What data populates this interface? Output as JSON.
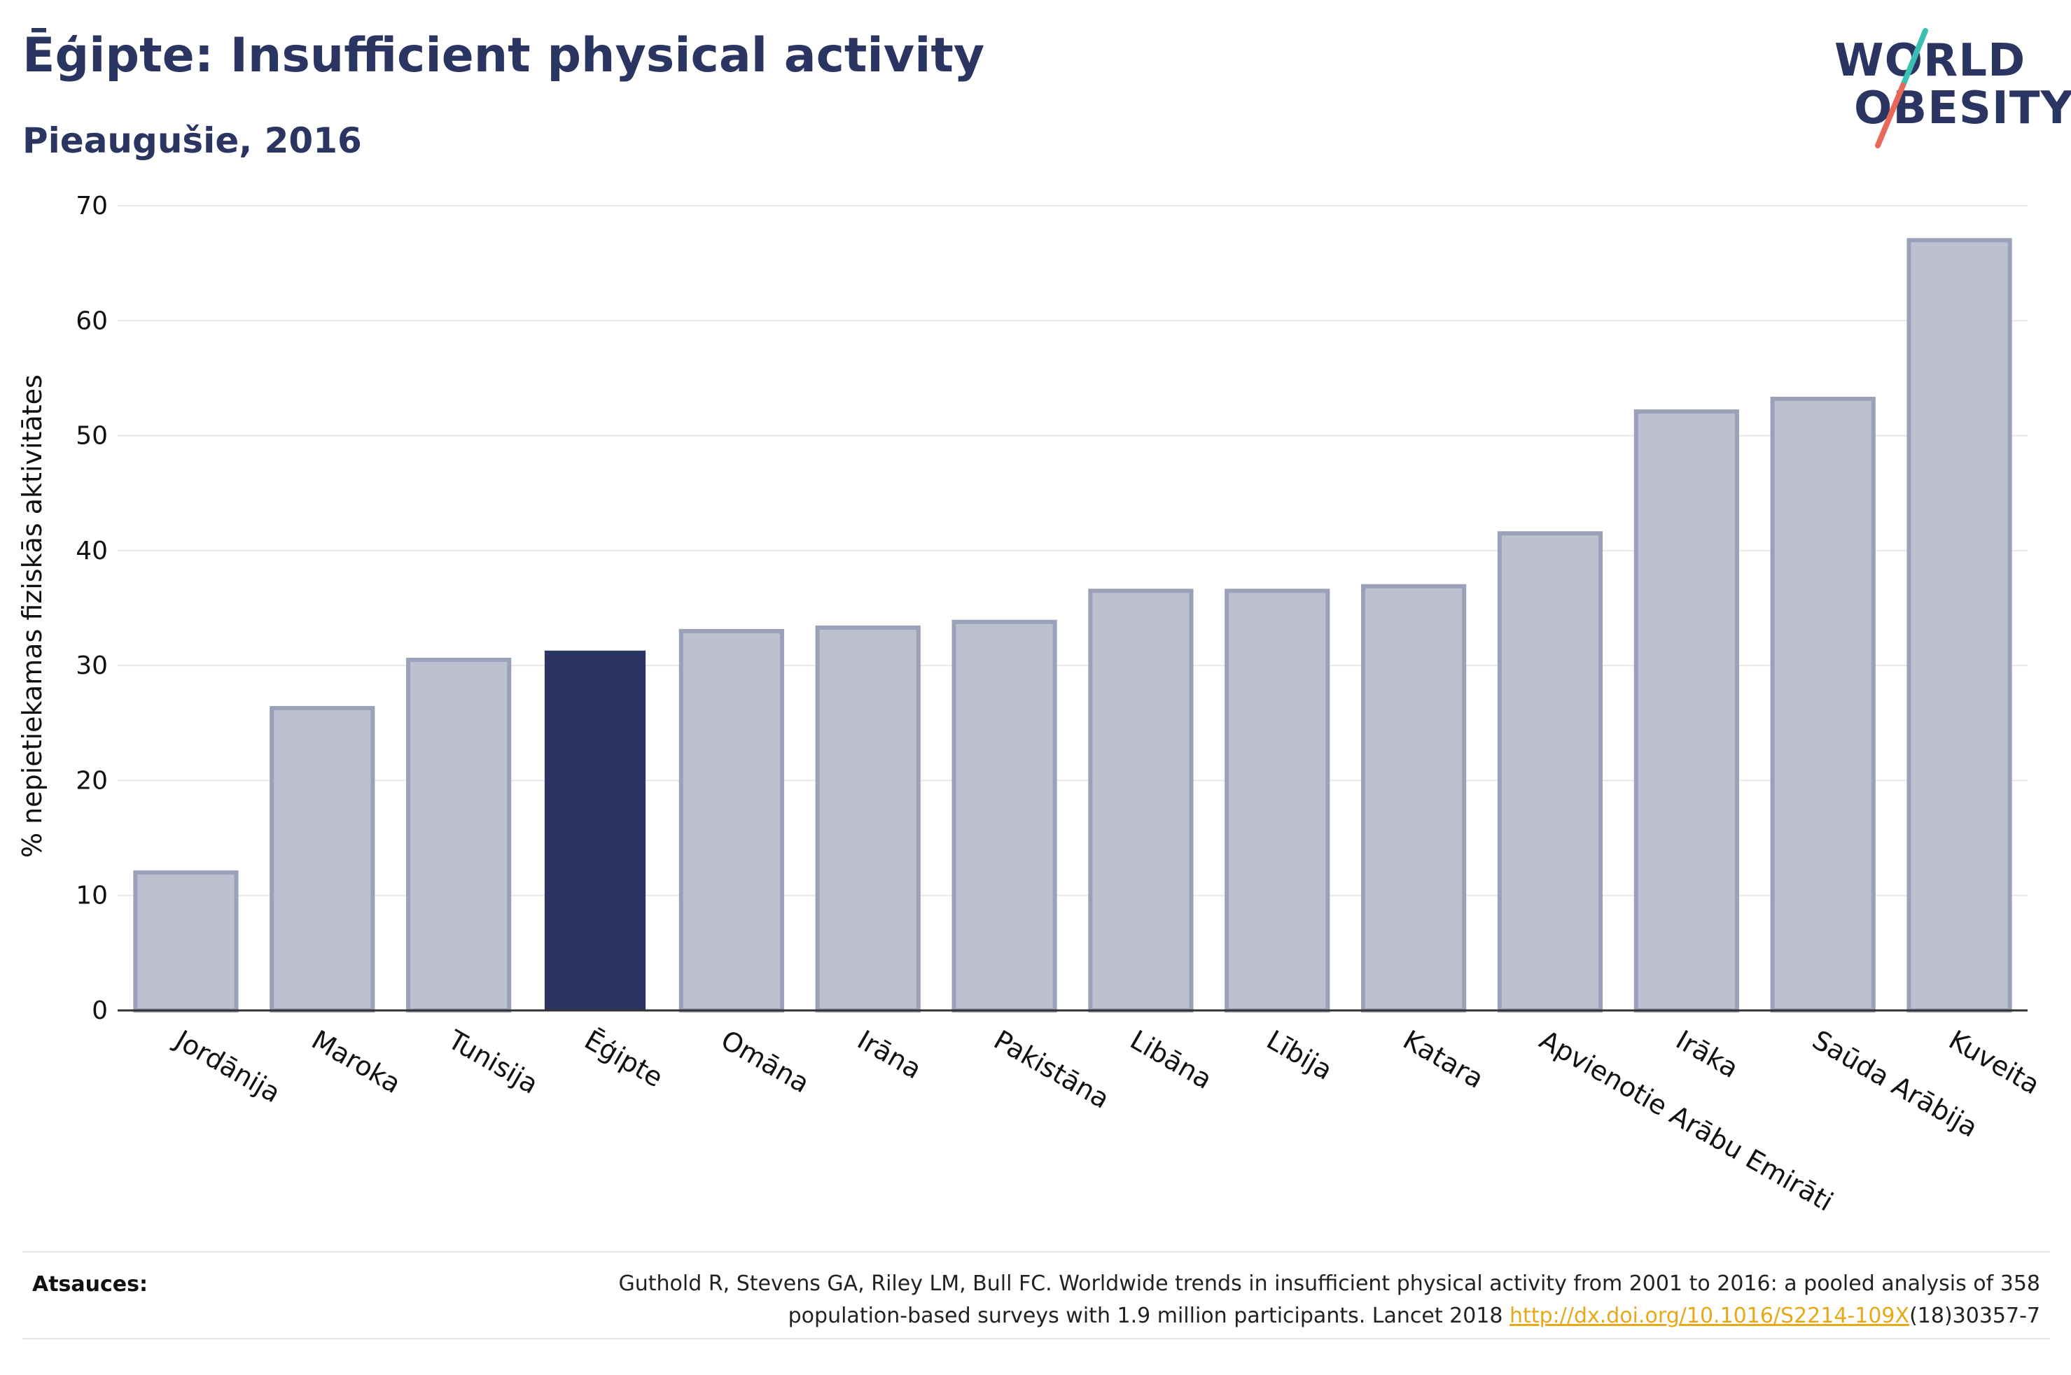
{
  "header": {
    "title": "Ēģipte: Insufficient physical activity",
    "subtitle": "Pieaugušie, 2016"
  },
  "logo": {
    "line1": "WORLD",
    "line2": "OBESITY",
    "colors": {
      "text": "#2b3561",
      "slash_top": "#3bbfb2",
      "slash_bottom": "#e8695a"
    }
  },
  "chart_data": {
    "type": "bar",
    "categories": [
      "Jordānija",
      "Maroka",
      "Tunisija",
      "Ēģipte",
      "Omāna",
      "Irāna",
      "Pakistāna",
      "Libāna",
      "Lībija",
      "Katara",
      "Apvienotie Arābu Emirāti",
      "Irāka",
      "Saūda Arābija",
      "Kuveita"
    ],
    "values": [
      12.0,
      26.3,
      30.5,
      31.3,
      33.0,
      33.3,
      33.8,
      36.5,
      36.5,
      36.9,
      41.5,
      52.1,
      53.2,
      67.0
    ],
    "highlight": "Ēģipte",
    "ylabel": "% nepietiekamas fiziskās aktivitātes",
    "xlabel": "",
    "ylim": [
      0,
      70
    ],
    "yticks": [
      0,
      10,
      20,
      30,
      40,
      50,
      60,
      70
    ],
    "grid": true,
    "colors": {
      "bar": "#bdc1cf",
      "bar_edge": "#9aa1b8",
      "highlight": "#2b3561",
      "grid": "#e8e8ea"
    }
  },
  "sources": {
    "label": "Atsauces:",
    "text_line1": "Guthold R, Stevens GA, Riley LM, Bull FC. Worldwide trends in insufficient physical activity from 2001 to 2016: a pooled analysis of 358",
    "text_line2_pre": "population-based surveys with 1.9 million participants. Lancet 2018 ",
    "link": "http://dx.doi.org/10.1016/S2214-109X",
    "text_line2_post": "(18)30357-7"
  }
}
